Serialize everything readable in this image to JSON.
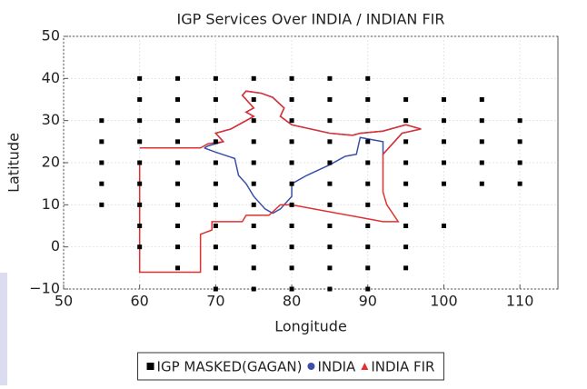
{
  "chart_data": {
    "type": "scatter",
    "title": "IGP Services Over INDIA / INDIAN FIR",
    "xlabel": "Longitude",
    "ylabel": "Latitude",
    "xlim": [
      50,
      115
    ],
    "ylim": [
      -10,
      50
    ],
    "xticks": [
      50,
      60,
      70,
      80,
      90,
      100,
      110
    ],
    "yticks": [
      {
        "value": -10,
        "label": "−10"
      },
      0,
      10,
      20,
      30,
      40,
      50
    ],
    "grid": true,
    "legend": "bottom",
    "series": [
      {
        "name": "IGP MASKED(GAGAN)",
        "color": "#000000",
        "marker": "square",
        "style": "points",
        "x": [
          60,
          65,
          70,
          75,
          80,
          85,
          90,
          60,
          65,
          70,
          75,
          80,
          85,
          90,
          95,
          100,
          105,
          55,
          60,
          65,
          70,
          75,
          80,
          85,
          90,
          95,
          100,
          105,
          110,
          55,
          60,
          65,
          70,
          75,
          80,
          85,
          90,
          95,
          100,
          105,
          110,
          55,
          60,
          65,
          70,
          75,
          80,
          85,
          90,
          95,
          100,
          105,
          110,
          55,
          60,
          65,
          70,
          75,
          80,
          85,
          90,
          95,
          100,
          105,
          110,
          55,
          60,
          65,
          70,
          75,
          80,
          85,
          90,
          95,
          60,
          65,
          70,
          75,
          80,
          85,
          90,
          95,
          100,
          60,
          65,
          70,
          75,
          80,
          85,
          90,
          95,
          65,
          70,
          75,
          80,
          85,
          90,
          95,
          70,
          75,
          80,
          85,
          90
        ],
        "values": [
          40,
          40,
          40,
          40,
          40,
          40,
          40,
          35,
          35,
          35,
          35,
          35,
          35,
          35,
          35,
          35,
          35,
          30,
          30,
          30,
          30,
          30,
          30,
          30,
          30,
          30,
          30,
          30,
          30,
          25,
          25,
          25,
          25,
          25,
          25,
          25,
          25,
          25,
          25,
          25,
          25,
          20,
          20,
          20,
          20,
          20,
          20,
          20,
          20,
          20,
          20,
          20,
          20,
          15,
          15,
          15,
          15,
          15,
          15,
          15,
          15,
          15,
          15,
          15,
          15,
          10,
          10,
          10,
          10,
          10,
          10,
          10,
          10,
          10,
          5,
          5,
          5,
          5,
          5,
          5,
          5,
          5,
          5,
          0,
          0,
          0,
          0,
          0,
          0,
          0,
          0,
          -5,
          -5,
          -5,
          -5,
          -5,
          -5,
          -5,
          -10,
          -10,
          -10,
          -10,
          -10
        ]
      },
      {
        "name": "INDIA",
        "color": "#3a4fa8",
        "marker": "circle",
        "style": "line",
        "x": [
          68.5,
          70,
          72.5,
          73,
          74,
          75,
          76.5,
          77.5,
          78.5,
          80,
          80,
          82,
          85,
          87,
          88.5,
          89,
          92,
          92,
          93,
          94.5,
          97,
          95,
          92,
          89,
          88,
          85,
          80,
          78.5,
          79,
          77.5,
          76,
          74,
          73.5,
          75,
          74,
          75,
          74,
          72,
          70,
          71,
          69,
          68.5
        ],
        "values": [
          23.5,
          22.5,
          21,
          17,
          15,
          12,
          9,
          8,
          9,
          12,
          15,
          17,
          19.5,
          21.5,
          22,
          26,
          25,
          22,
          24,
          27,
          28,
          29,
          27.5,
          27,
          26.5,
          27,
          29,
          31,
          33,
          35.5,
          36.5,
          37,
          36,
          33,
          32,
          31,
          30,
          28,
          27,
          25,
          24,
          23.5
        ]
      },
      {
        "name": "INDIA FIR",
        "color": "#e03030",
        "marker": "triangle",
        "style": "line",
        "x": [
          60,
          60,
          68,
          68,
          69.5,
          69.5,
          73.5,
          74,
          77,
          78.5,
          80,
          92,
          94,
          92.5,
          92,
          92,
          93,
          94.5,
          97,
          95,
          92,
          89,
          88,
          85,
          80,
          78.5,
          79,
          77.5,
          76,
          74,
          73.5,
          75,
          74,
          75,
          74,
          72,
          70,
          71,
          69,
          68,
          60
        ],
        "values": [
          20,
          -6,
          -6,
          3,
          4,
          6,
          6,
          7.5,
          7.5,
          10,
          10,
          6,
          6,
          10,
          13,
          22,
          24,
          27,
          28,
          29,
          27.5,
          27,
          26.5,
          27,
          29,
          31,
          33,
          35.5,
          36.5,
          37,
          36,
          33,
          32,
          31,
          30,
          28,
          27,
          25,
          24.5,
          23.5,
          23.5
        ]
      }
    ]
  }
}
